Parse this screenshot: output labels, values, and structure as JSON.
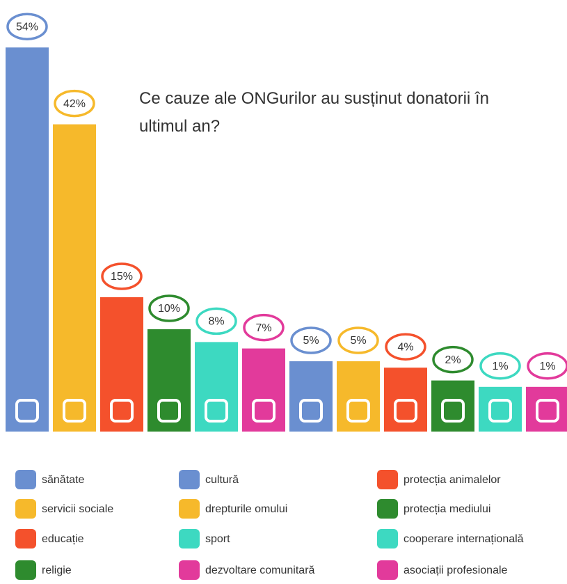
{
  "chart_data": {
    "type": "bar",
    "title": "Ce cauze ale ONGurilor au susținut donatorii în ultimul an?",
    "categories": [
      "sănătate",
      "servicii sociale",
      "educație",
      "religie",
      "sport",
      "dezvoltare comunitară",
      "cultură",
      "drepturile omului",
      "protecția animalelor",
      "protecția mediului",
      "cooperare internațională",
      "asociații profesionale"
    ],
    "values": [
      54,
      42,
      15,
      10,
      8,
      7,
      5,
      5,
      4,
      2,
      1,
      1
    ],
    "value_labels": [
      "54%",
      "42%",
      "15%",
      "10%",
      "8%",
      "7%",
      "5%",
      "5%",
      "4%",
      "2%",
      "1%",
      "1%"
    ],
    "colors": [
      "#6a8fd0",
      "#f6b92b",
      "#f4512c",
      "#2e8b2e",
      "#3dd9c1",
      "#e23a9b",
      "#6a8fd0",
      "#f6b92b",
      "#f4512c",
      "#2e8b2e",
      "#3dd9c1",
      "#e23a9b"
    ]
  }
}
